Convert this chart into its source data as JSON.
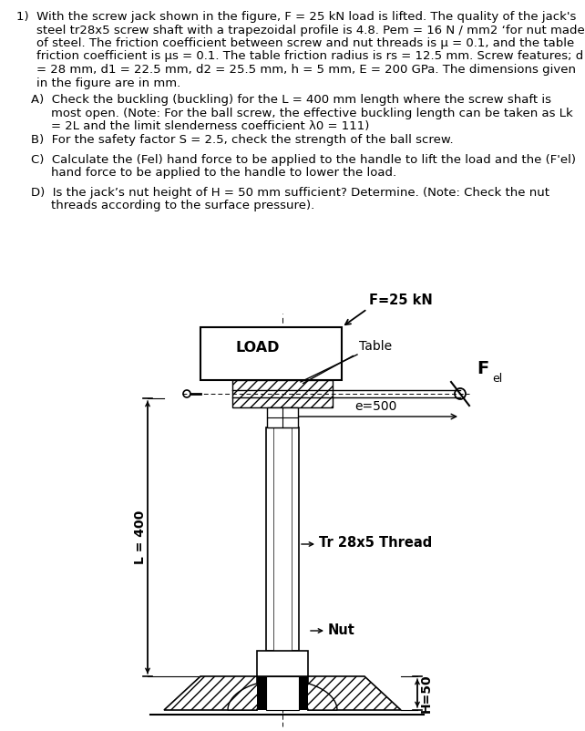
{
  "background_color": "#ffffff",
  "font_size": 9.5,
  "fig_label_load": "LOAD",
  "fig_label_F": "F=25 kN",
  "fig_label_table": "Table",
  "fig_label_e": "e=500",
  "fig_label_thread": "Tr 28x5 Thread",
  "fig_label_nut": "Nut",
  "fig_label_L": "L = 400",
  "fig_label_H": "H=50"
}
